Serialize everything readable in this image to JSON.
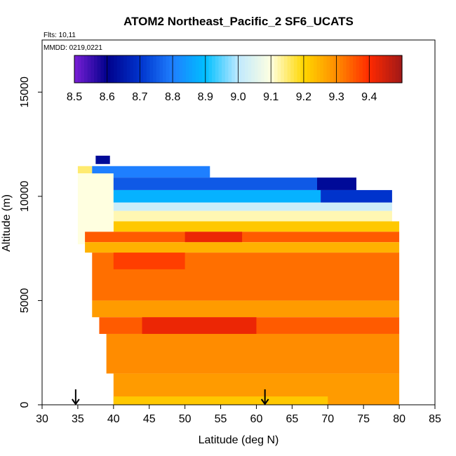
{
  "chart_data": {
    "type": "heatmap",
    "title": "ATOM2 Northeast_Pacific_2 SF6_UCATS",
    "flights_label": "Flts: 10,11",
    "mmdd_label": "MMDD: 0219,0221",
    "xlabel": "Latitude (deg N)",
    "ylabel": "Altitude (m)",
    "xlim": [
      30,
      85
    ],
    "ylim": [
      0,
      17500
    ],
    "x_ticks": [
      "30",
      "35",
      "40",
      "45",
      "50",
      "55",
      "60",
      "65",
      "70",
      "75",
      "80",
      "85"
    ],
    "y_ticks": [
      "0",
      "5000",
      "10000",
      "15000"
    ],
    "colorbar": {
      "min": 8.5,
      "max": 9.5,
      "tick_labels": [
        "8.5",
        "8.6",
        "8.7",
        "8.8",
        "8.9",
        "9.0",
        "9.1",
        "9.2",
        "9.3",
        "9.4"
      ],
      "colors": [
        "#7a1fd6",
        "#00008b",
        "#0033cc",
        "#1e7fff",
        "#00bfff",
        "#bfe9ff",
        "#ffffe0",
        "#ffd700",
        "#ff8c00",
        "#ff2a00",
        "#a01818"
      ]
    },
    "data_description_units": "SF6 mixing ratio (colorbar scale)",
    "arrows_latitude": [
      34.7,
      61.2
    ],
    "regions": [
      {
        "lat_min": 37.5,
        "lat_max": 39.5,
        "alt_min": 11550,
        "alt_max": 11950,
        "value": 8.62
      },
      {
        "lat_min": 35,
        "lat_max": 37,
        "alt_min": 11100,
        "alt_max": 11450,
        "value": 9.15
      },
      {
        "lat_min": 37,
        "lat_max": 53.5,
        "alt_min": 10900,
        "alt_max": 11450,
        "value": 8.8
      },
      {
        "lat_min": 37,
        "lat_max": 68.5,
        "alt_min": 10300,
        "alt_max": 10900,
        "value": 8.75
      },
      {
        "lat_min": 68.5,
        "lat_max": 74,
        "alt_min": 10300,
        "alt_max": 10900,
        "value": 8.62
      },
      {
        "lat_min": 37,
        "lat_max": 69,
        "alt_min": 9700,
        "alt_max": 10300,
        "value": 8.88
      },
      {
        "lat_min": 69,
        "lat_max": 79,
        "alt_min": 9700,
        "alt_max": 10300,
        "value": 8.7
      },
      {
        "lat_min": 39,
        "lat_max": 79,
        "alt_min": 9300,
        "alt_max": 9700,
        "value": 9.02
      },
      {
        "lat_min": 40,
        "lat_max": 79,
        "alt_min": 8800,
        "alt_max": 9300,
        "value": 9.12
      },
      {
        "lat_min": 40,
        "lat_max": 80,
        "alt_min": 8300,
        "alt_max": 8800,
        "value": 9.22
      },
      {
        "lat_min": 35,
        "lat_max": 40,
        "alt_min": 7700,
        "alt_max": 11100,
        "value": 9.1
      },
      {
        "lat_min": 36,
        "lat_max": 80,
        "alt_min": 7800,
        "alt_max": 8300,
        "value": 9.35
      },
      {
        "lat_min": 50,
        "lat_max": 58,
        "alt_min": 7800,
        "alt_max": 8300,
        "value": 9.42
      },
      {
        "lat_min": 36,
        "lat_max": 80,
        "alt_min": 7300,
        "alt_max": 7800,
        "value": 9.25
      },
      {
        "lat_min": 37,
        "lat_max": 80,
        "alt_min": 5000,
        "alt_max": 7300,
        "value": 9.33
      },
      {
        "lat_min": 40,
        "lat_max": 50,
        "alt_min": 6500,
        "alt_max": 7300,
        "value": 9.38
      },
      {
        "lat_min": 37,
        "lat_max": 80,
        "alt_min": 4200,
        "alt_max": 5000,
        "value": 9.28
      },
      {
        "lat_min": 38,
        "lat_max": 80,
        "alt_min": 3400,
        "alt_max": 4200,
        "value": 9.35
      },
      {
        "lat_min": 44,
        "lat_max": 60,
        "alt_min": 3400,
        "alt_max": 4200,
        "value": 9.42
      },
      {
        "lat_min": 39,
        "lat_max": 80,
        "alt_min": 1500,
        "alt_max": 3400,
        "value": 9.3
      },
      {
        "lat_min": 40,
        "lat_max": 80,
        "alt_min": 0,
        "alt_max": 1500,
        "value": 9.28
      },
      {
        "lat_min": 40,
        "lat_max": 70,
        "alt_min": 0,
        "alt_max": 400,
        "value": 9.22
      }
    ]
  }
}
